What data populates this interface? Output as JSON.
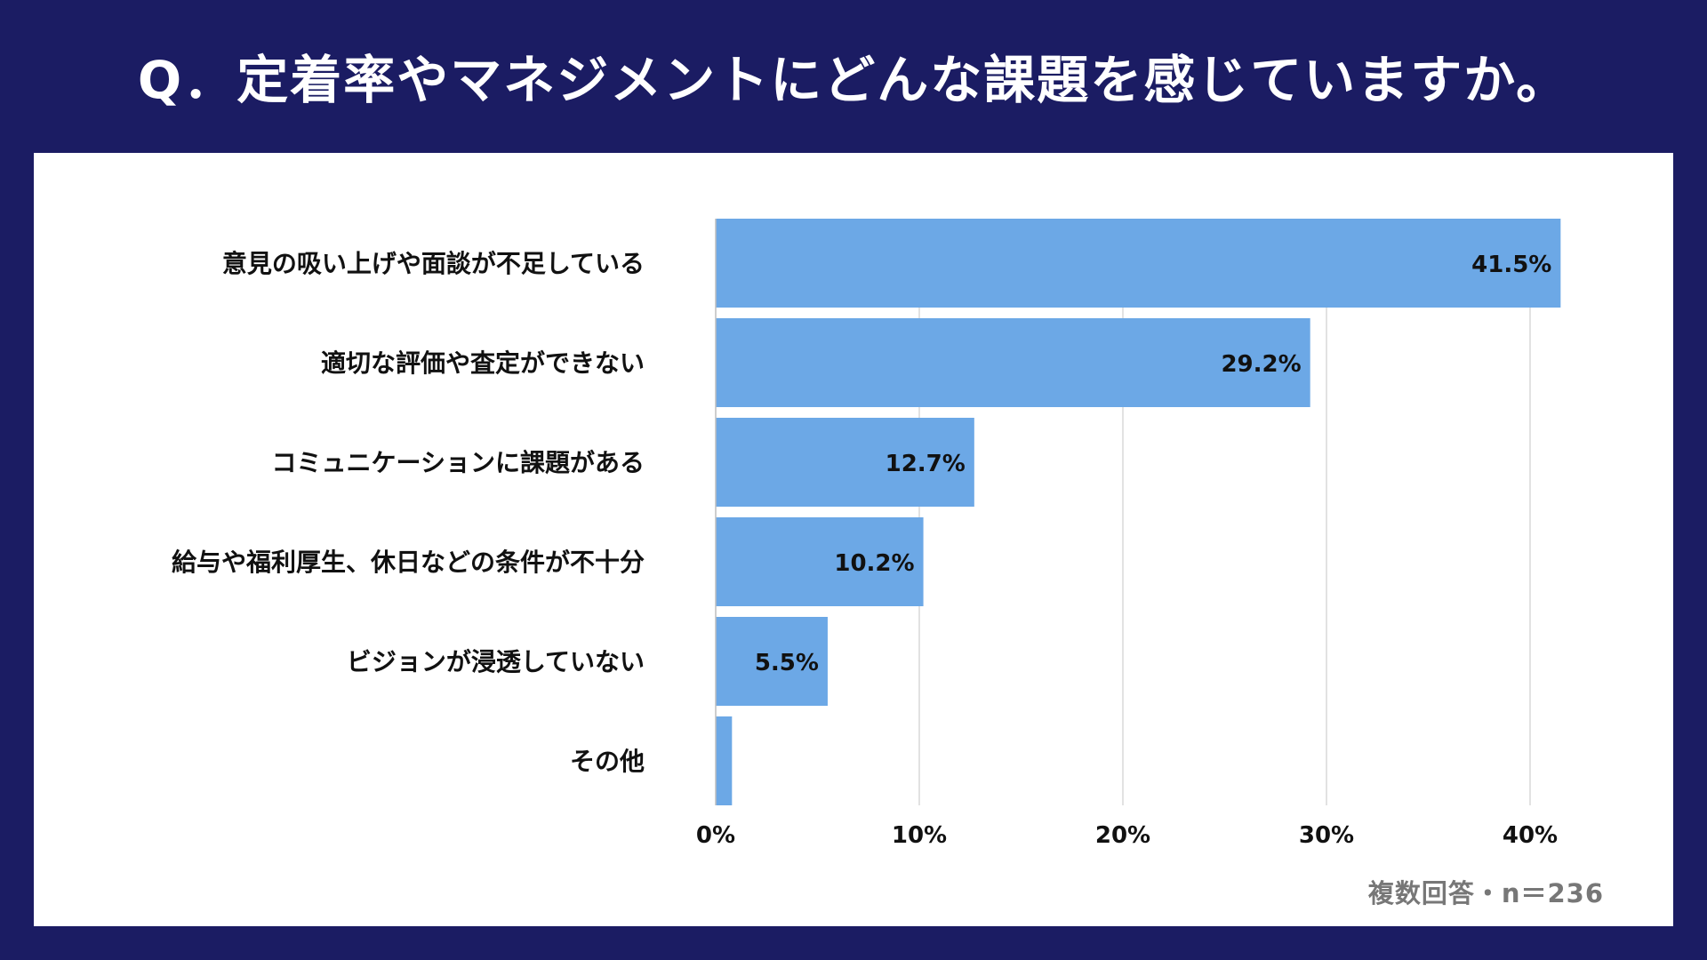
{
  "title": "Q．定着率やマネジメントにどんな課題を感じていますか。",
  "note": "複数回答・n＝236",
  "colors": {
    "background": "#1b1c63",
    "bar": "#6ca8e6",
    "grid": "#d9d9d9",
    "panel": "#ffffff"
  },
  "chart_data": {
    "type": "bar",
    "orientation": "horizontal",
    "categories": [
      "意見の吸い上げや面談が不足している",
      "適切な評価や査定ができない",
      "コミュニケーションに課題がある",
      "給与や福利厚生、休日などの条件が不十分",
      "ビジョンが浸透していない",
      "その他"
    ],
    "values": [
      41.5,
      29.2,
      12.7,
      10.2,
      5.5,
      0.8
    ],
    "data_labels": [
      "41.5%",
      "29.2%",
      "12.7%",
      "10.2%",
      "5.5%",
      ""
    ],
    "xlim": [
      0,
      42
    ],
    "xticks": [
      0,
      10,
      20,
      30,
      40
    ],
    "xtick_labels": [
      "0%",
      "10%",
      "20%",
      "30%",
      "40%"
    ],
    "grid": true,
    "legend": false
  }
}
